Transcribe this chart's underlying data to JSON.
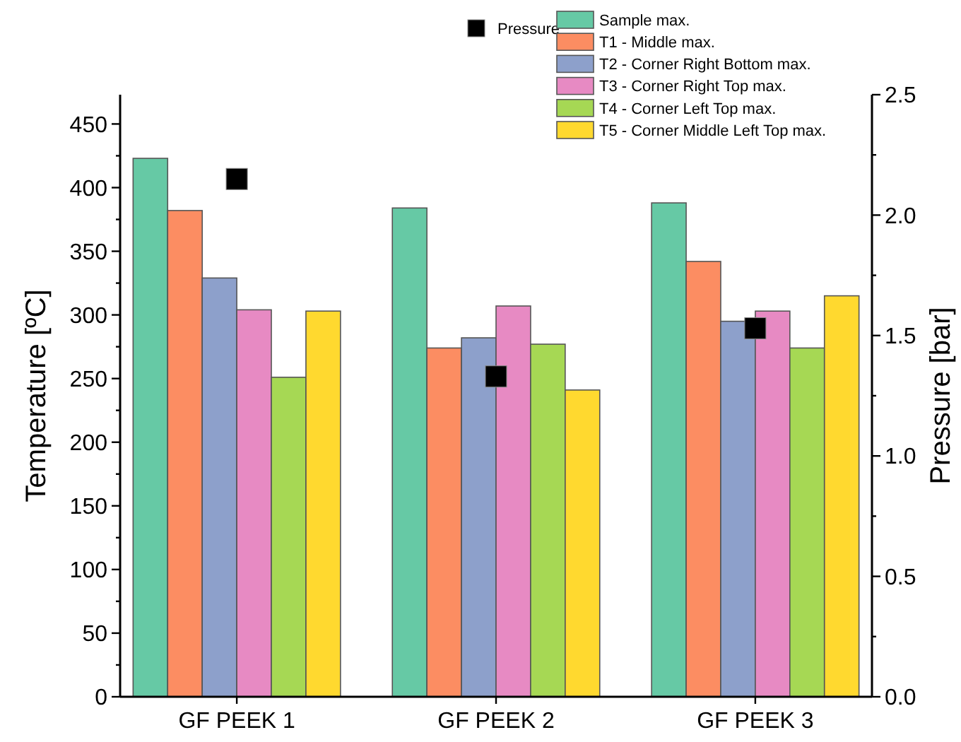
{
  "chart_data": {
    "type": "bar",
    "categories": [
      "GF PEEK 1",
      "GF PEEK 2",
      "GF PEEK 3"
    ],
    "ylabel": "Temperature [ºC]",
    "y2label": "Pressure [bar]",
    "series": [
      {
        "name": "Sample max.",
        "color": "#66c9a5",
        "values": [
          423,
          384,
          388
        ]
      },
      {
        "name": "T1 - Middle max.",
        "color": "#fc8d62",
        "values": [
          382,
          274,
          342
        ]
      },
      {
        "name": "T2 - Corner Right Bottom max.",
        "color": "#8da0cb",
        "values": [
          329,
          282,
          295
        ]
      },
      {
        "name": "T3 - Corner Right Top max.",
        "color": "#e78ac3",
        "values": [
          304,
          307,
          303
        ]
      },
      {
        "name": "T4 - Corner Left Top max.",
        "color": "#a6d854",
        "values": [
          251,
          277,
          274
        ]
      },
      {
        "name": "T5 - Corner Middle Left Top max.",
        "color": "#ffd92f",
        "values": [
          303,
          241,
          315
        ]
      },
      {
        "name": "Pressure",
        "type": "scatter",
        "axis": "y2",
        "color": "#000000",
        "marker": "square",
        "x": [
          "GF PEEK 1",
          "GF PEEK 2",
          "GF PEEK 3"
        ],
        "values": [
          2.15,
          1.33,
          1.53
        ]
      }
    ],
    "ylim": [
      0,
      473
    ],
    "yticks": [
      0,
      {
        "value": 25,
        "label": null
      },
      50,
      {
        "value": 75,
        "label": null
      },
      100,
      {
        "value": 125,
        "label": null
      },
      150,
      {
        "value": 175,
        "label": null
      },
      200,
      {
        "value": 225,
        "label": null
      },
      250,
      {
        "value": 275,
        "label": null
      },
      300,
      {
        "value": 325,
        "label": null
      },
      350,
      {
        "value": 375,
        "label": null
      },
      400,
      {
        "value": 425,
        "label": null
      },
      450
    ],
    "y2lim": [
      0,
      2.5
    ],
    "y2ticks": [
      {
        "value": 0,
        "label": "0.0"
      },
      {
        "value": 0.25,
        "label": null
      },
      {
        "value": 0.5,
        "label": "0.5"
      },
      {
        "value": 0.75,
        "label": null
      },
      {
        "value": 1,
        "label": "1.0"
      },
      {
        "value": 1.25,
        "label": null
      },
      {
        "value": 1.5,
        "label": "1.5"
      },
      {
        "value": 1.75,
        "label": null
      },
      {
        "value": 2,
        "label": "2.0"
      },
      {
        "value": 2.25,
        "label": null
      },
      {
        "value": 2.5,
        "label": "2.5"
      }
    ],
    "legend": "top right"
  }
}
